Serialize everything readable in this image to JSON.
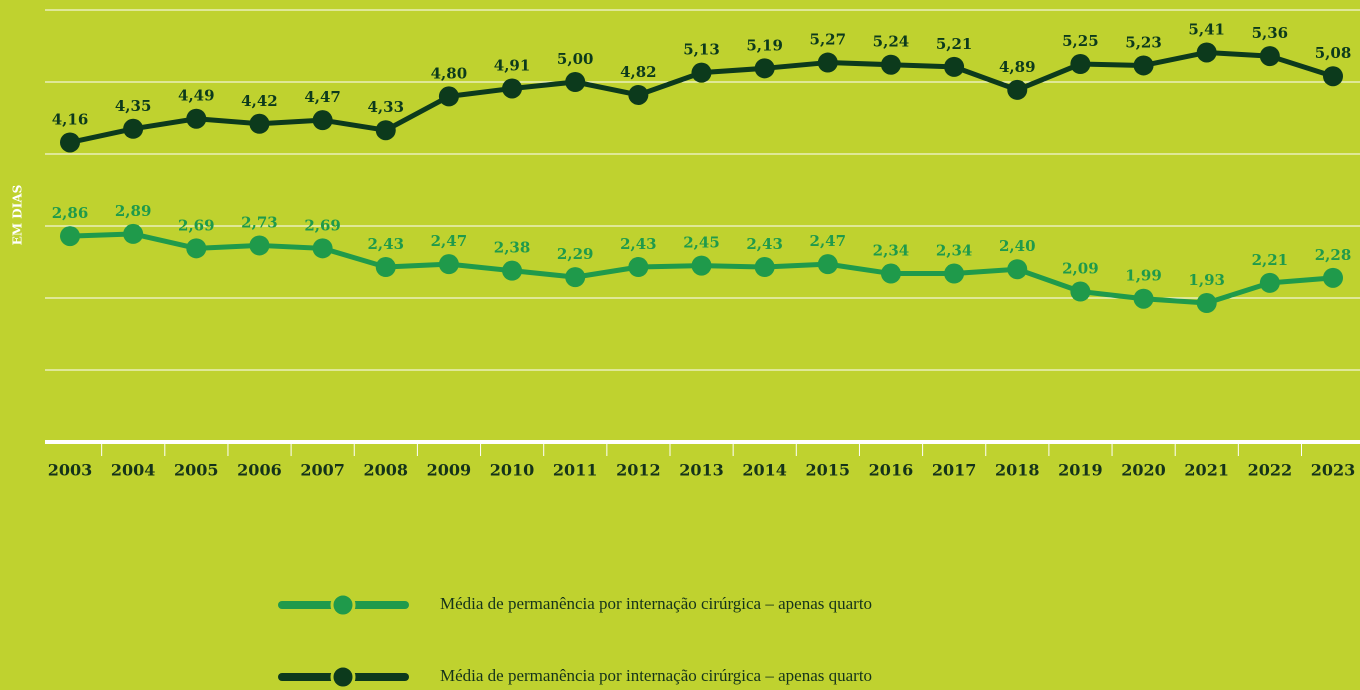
{
  "chart_data": {
    "type": "line",
    "y_label": "EM DIAS",
    "categories": [
      "2003",
      "2004",
      "2005",
      "2006",
      "2007",
      "2008",
      "2009",
      "2010",
      "2011",
      "2012",
      "2013",
      "2014",
      "2015",
      "2016",
      "2017",
      "2018",
      "2019",
      "2020",
      "2021",
      "2022",
      "2023"
    ],
    "series": [
      {
        "name": "Média de permanência por internação cirúrgica – apenas quarto",
        "color": "#1f9a4b",
        "values": [
          2.86,
          2.89,
          2.69,
          2.73,
          2.69,
          2.43,
          2.47,
          2.38,
          2.29,
          2.43,
          2.45,
          2.43,
          2.47,
          2.34,
          2.34,
          2.4,
          2.09,
          1.99,
          1.93,
          2.21,
          2.28
        ],
        "value_labels": [
          "2,86",
          "2,89",
          "2,69",
          "2,73",
          "2,69",
          "2,43",
          "2,47",
          "2,38",
          "2,29",
          "2,43",
          "2,45",
          "2,43",
          "2,47",
          "2,34",
          "2,34",
          "2,40",
          "2,09",
          "1,99",
          "1,93",
          "2,21",
          "2,28"
        ]
      },
      {
        "name": "Média de permanência por internação cirúrgica – apenas quarto",
        "color": "#0c3a1c",
        "values": [
          4.16,
          4.35,
          4.49,
          4.42,
          4.47,
          4.33,
          4.8,
          4.91,
          5.0,
          4.82,
          5.13,
          5.19,
          5.27,
          5.24,
          5.21,
          4.89,
          5.25,
          5.23,
          5.41,
          5.36,
          5.08
        ],
        "value_labels": [
          "4,16",
          "4,35",
          "4,49",
          "4,42",
          "4,47",
          "4,33",
          "4,80",
          "4,91",
          "5,00",
          "4,82",
          "5,13",
          "5,19",
          "5,27",
          "5,24",
          "5,21",
          "4,89",
          "5,25",
          "5,23",
          "5,41",
          "5,36",
          "5,08"
        ]
      }
    ],
    "ylim": [
      0,
      6
    ],
    "yticks": [
      0,
      1,
      2,
      3,
      4,
      5,
      6
    ],
    "grid": true
  }
}
